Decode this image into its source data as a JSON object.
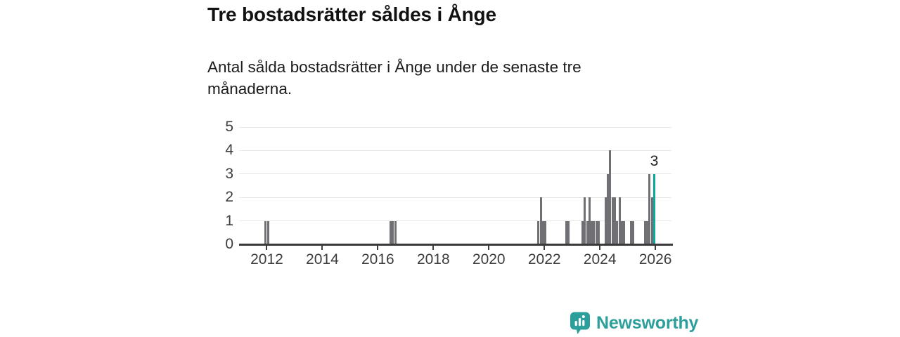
{
  "header": {
    "title": "Tre bostadsrätter såldes i Ånge",
    "subtitle": "Antal sålda bostadsrätter i Ånge under de senaste tre månaderna."
  },
  "chart_data": {
    "type": "bar",
    "title": "Tre bostadsrätter såldes i Ånge",
    "description": "Antal sålda bostadsrätter i Ånge per månad",
    "x_axis": {
      "range_start": 2011.0,
      "range_end": 2026.58,
      "tick_labels": [
        "2012",
        "2014",
        "2016",
        "2018",
        "2020",
        "2022",
        "2024",
        "2026"
      ]
    },
    "y_axis": {
      "min": 0,
      "max": 5,
      "tick_labels": [
        "0",
        "1",
        "2",
        "3",
        "4",
        "5"
      ]
    },
    "grid": "horizontal",
    "legend": "none",
    "bar_color": "#6f6f74",
    "highlight_color": "#0ca89f",
    "annotation": {
      "text": "3",
      "month": "2025-12"
    },
    "points": [
      {
        "month": "2011-12",
        "value": 1
      },
      {
        "month": "2012-01",
        "value": 1
      },
      {
        "month": "2016-06",
        "value": 1
      },
      {
        "month": "2016-07",
        "value": 1
      },
      {
        "month": "2016-08",
        "value": 1
      },
      {
        "month": "2021-10",
        "value": 1
      },
      {
        "month": "2021-11",
        "value": 2
      },
      {
        "month": "2021-12",
        "value": 1
      },
      {
        "month": "2022-01",
        "value": 1
      },
      {
        "month": "2022-10",
        "value": 1
      },
      {
        "month": "2022-11",
        "value": 1
      },
      {
        "month": "2023-05",
        "value": 1
      },
      {
        "month": "2023-06",
        "value": 2
      },
      {
        "month": "2023-07",
        "value": 1
      },
      {
        "month": "2023-08",
        "value": 2
      },
      {
        "month": "2023-09",
        "value": 1
      },
      {
        "month": "2023-10",
        "value": 1
      },
      {
        "month": "2023-11",
        "value": 1
      },
      {
        "month": "2023-12",
        "value": 1
      },
      {
        "month": "2024-03",
        "value": 2
      },
      {
        "month": "2024-04",
        "value": 3
      },
      {
        "month": "2024-05",
        "value": 4
      },
      {
        "month": "2024-06",
        "value": 2
      },
      {
        "month": "2024-07",
        "value": 2
      },
      {
        "month": "2024-08",
        "value": 1
      },
      {
        "month": "2024-09",
        "value": 2
      },
      {
        "month": "2024-10",
        "value": 1
      },
      {
        "month": "2024-11",
        "value": 1
      },
      {
        "month": "2025-02",
        "value": 1
      },
      {
        "month": "2025-03",
        "value": 1
      },
      {
        "month": "2025-08",
        "value": 1
      },
      {
        "month": "2025-09",
        "value": 1
      },
      {
        "month": "2025-10",
        "value": 3
      },
      {
        "month": "2025-11",
        "value": 2
      },
      {
        "month": "2025-12",
        "value": 3,
        "highlight": true
      }
    ]
  },
  "footer": {
    "brand_name": "Newsworthy"
  }
}
